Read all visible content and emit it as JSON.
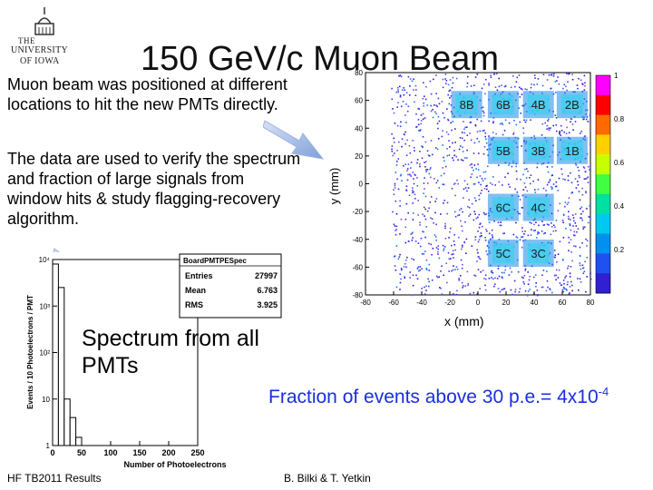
{
  "logo": {
    "line1": "THE",
    "line2": "UNIVERSITY",
    "line3": "OF IOWA"
  },
  "title": "150 GeV/c Muon Beam",
  "paragraphs": {
    "p1": "Muon beam was positioned at different locations to hit the new PMTs directly.",
    "p2": "The data are used to verify the spectrum and fraction of large signals from window hits & study flagging-recovery algorithm."
  },
  "spectrum_caption": "Spectrum from all PMTs",
  "fraction": {
    "text": "Fraction of events above 30 p.e.= 4x10",
    "exponent": "-4"
  },
  "footer": {
    "left": "HF TB2011 Results",
    "center": "B. Bilki & T. Yetkin"
  },
  "chart_data": [
    {
      "type": "heatmap",
      "xlabel": "x (mm)",
      "ylabel": "y (mm)",
      "xlim": [
        -80,
        80
      ],
      "ylim": [
        -80,
        80
      ],
      "x_ticks": [
        -80,
        -60,
        -40,
        -20,
        0,
        20,
        40,
        60,
        80
      ],
      "y_ticks": [
        -80,
        -60,
        -40,
        -20,
        0,
        20,
        40,
        60,
        80
      ],
      "colorbar_ticks": [
        0.2,
        0.4,
        0.6,
        0.8,
        1
      ],
      "cells": [
        {
          "label": "8B",
          "x": -8,
          "y": 57
        },
        {
          "label": "6B",
          "x": 18,
          "y": 57
        },
        {
          "label": "4B",
          "x": 43,
          "y": 57
        },
        {
          "label": "2B",
          "x": 67,
          "y": 57
        },
        {
          "label": "5B",
          "x": 18,
          "y": 24
        },
        {
          "label": "3B",
          "x": 43,
          "y": 24
        },
        {
          "label": "1B",
          "x": 67,
          "y": 24
        },
        {
          "label": "6C",
          "x": 18,
          "y": -17
        },
        {
          "label": "4C",
          "x": 43,
          "y": -17
        },
        {
          "label": "5C",
          "x": 18,
          "y": -50
        },
        {
          "label": "3C",
          "x": 43,
          "y": -50
        }
      ]
    },
    {
      "type": "bar",
      "title": "BoardPMTPESpec",
      "stats": [
        {
          "label": "Entries",
          "value": "27997"
        },
        {
          "label": "Mean",
          "value": "6.763"
        },
        {
          "label": "RMS",
          "value": "3.925"
        }
      ],
      "xlabel": "Number of Photoelectrons",
      "ylabel": "Events / 10 Photoelectrons / PMT",
      "xlim": [
        0,
        250
      ],
      "x_ticks": [
        0,
        50,
        100,
        150,
        200,
        250
      ],
      "y_scale": "log",
      "ylim": [
        1,
        10000
      ],
      "y_ticks": [
        "1",
        "10",
        "10²",
        "10³",
        "10⁴"
      ],
      "bins": [
        {
          "x": 5,
          "y": 8000
        },
        {
          "x": 15,
          "y": 2500
        },
        {
          "x": 25,
          "y": 10
        },
        {
          "x": 35,
          "y": 4
        },
        {
          "x": 45,
          "y": 1.5
        }
      ]
    }
  ]
}
